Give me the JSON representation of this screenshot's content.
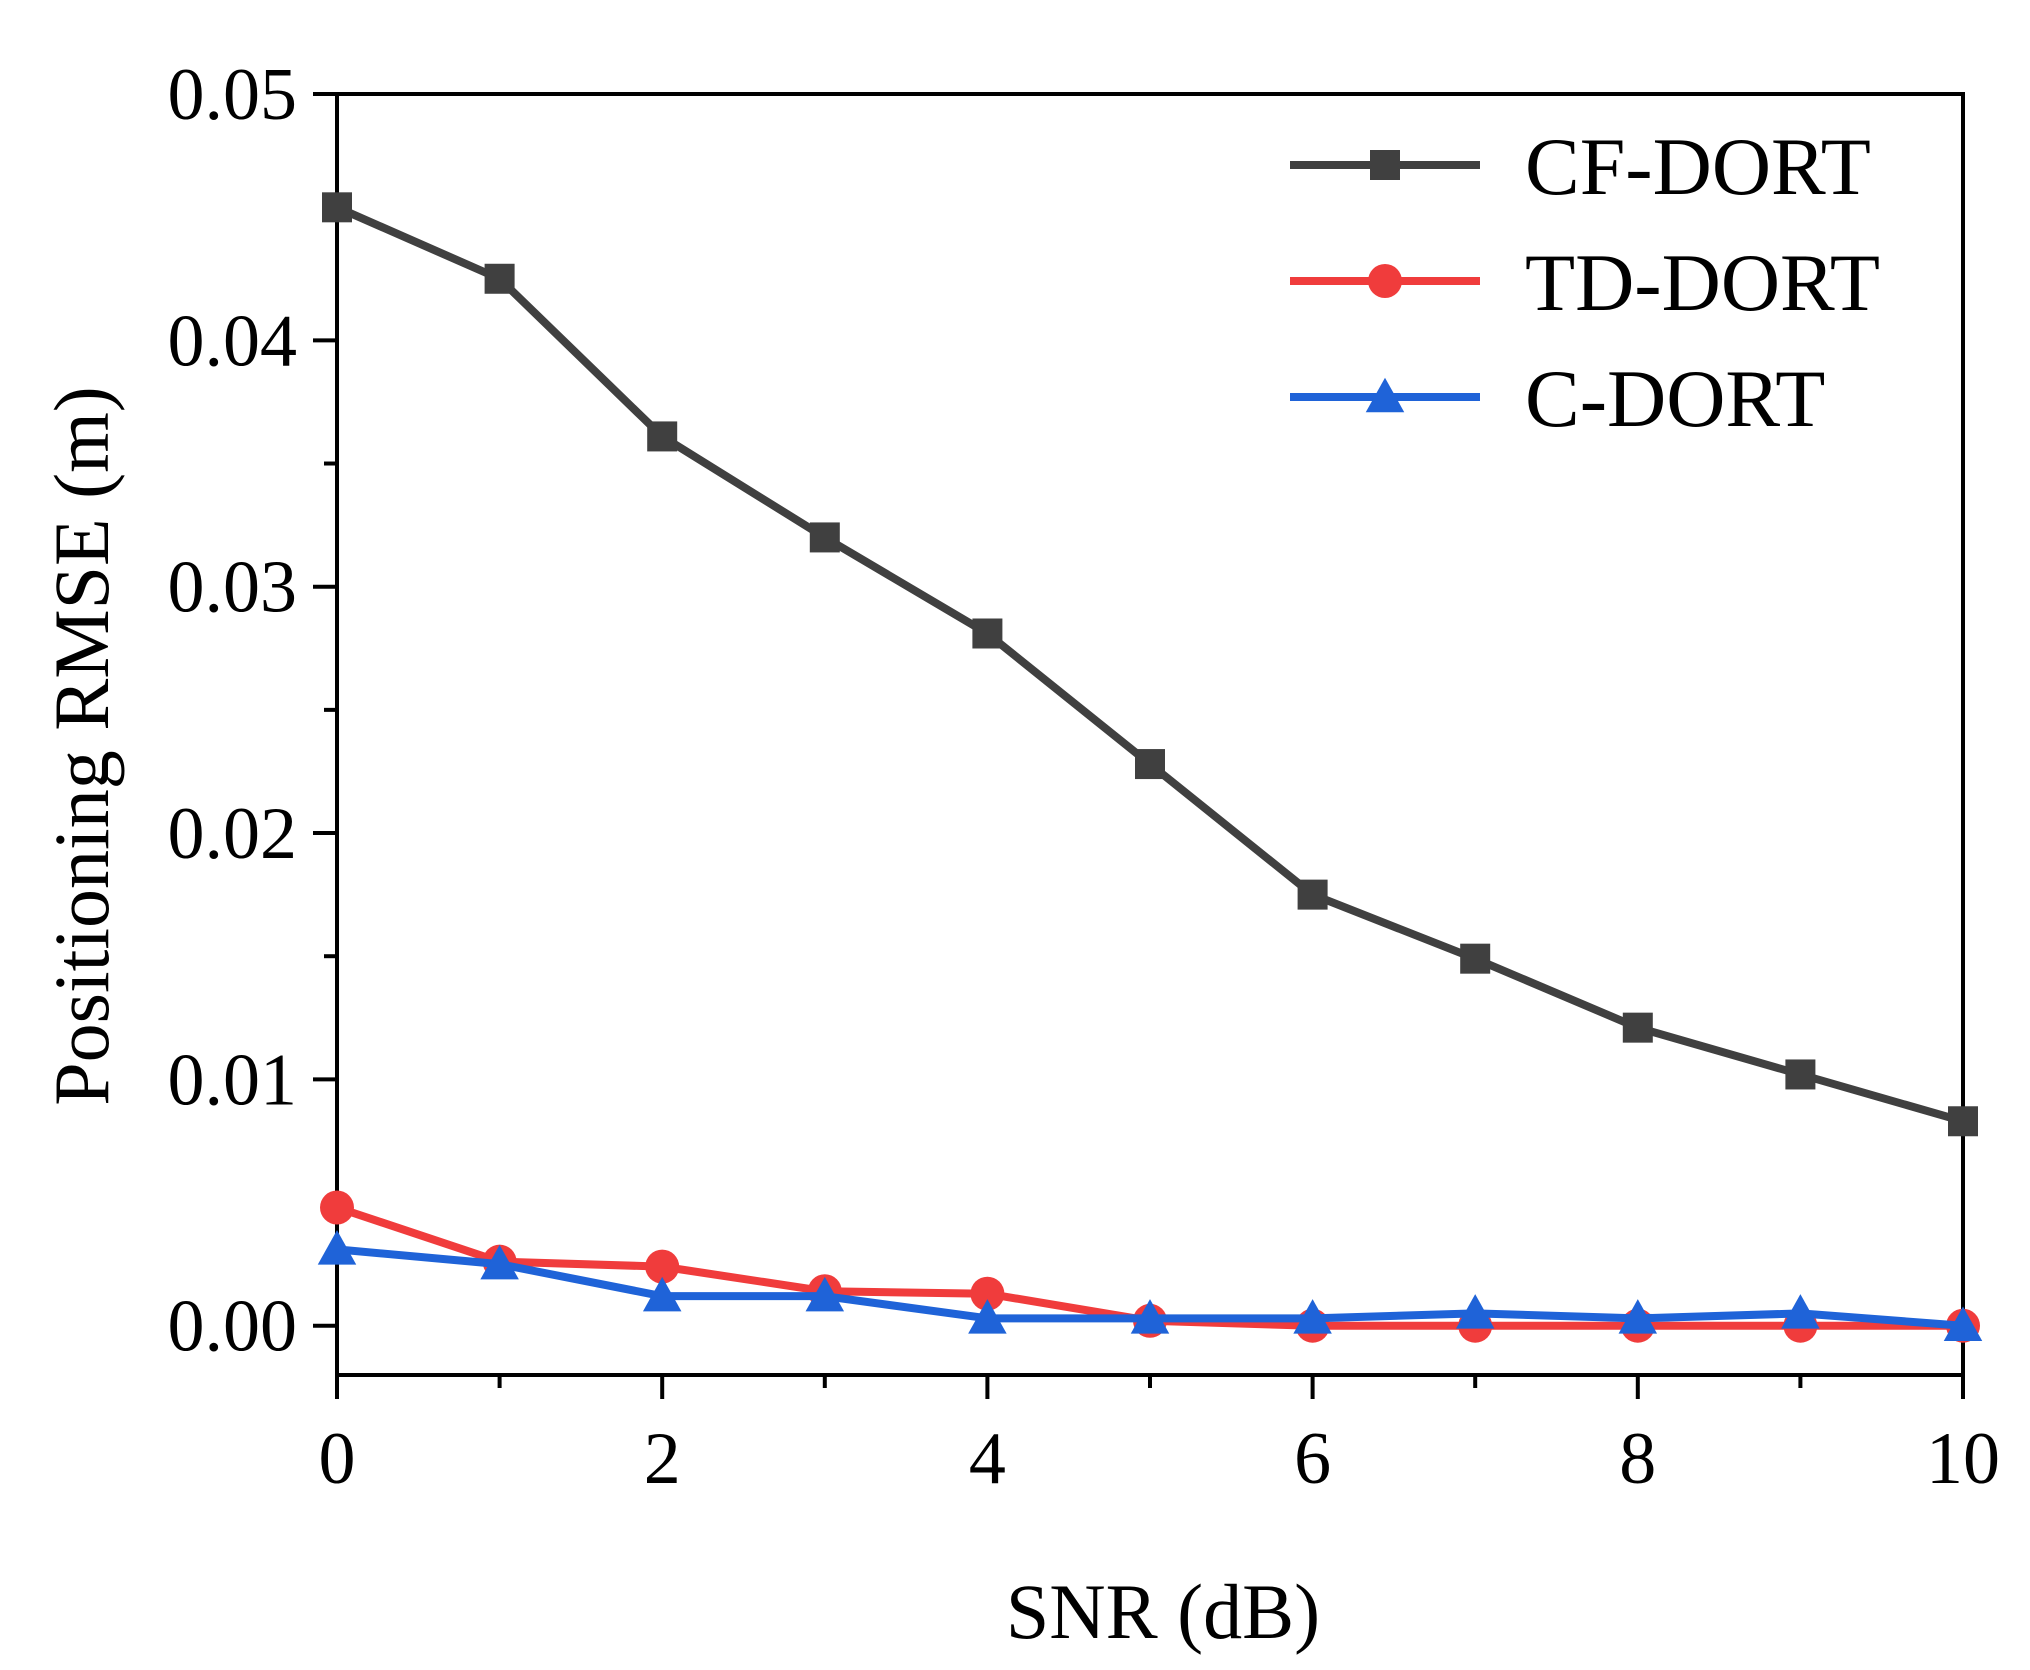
{
  "chart_data": {
    "type": "line",
    "title": "",
    "xlabel": "SNR (dB)",
    "ylabel": "Positioning RMSE (m)",
    "xlim": [
      0,
      10
    ],
    "ylim": [
      -0.002,
      0.05
    ],
    "x": [
      0,
      1,
      2,
      3,
      4,
      5,
      6,
      7,
      8,
      9,
      10
    ],
    "x_ticks": [
      0,
      2,
      4,
      6,
      8,
      10
    ],
    "x_tick_labels": [
      "0",
      "2",
      "4",
      "6",
      "8",
      "10"
    ],
    "y_ticks": [
      0.0,
      0.01,
      0.02,
      0.03,
      0.04,
      0.05
    ],
    "y_tick_labels": [
      "0.00",
      "0.01",
      "0.02",
      "0.03",
      "0.04",
      "0.05"
    ],
    "legend_position": "top-right",
    "grid": false,
    "series": [
      {
        "name": "CF-DORT",
        "color": "#404040",
        "marker": "square",
        "values": [
          0.0454,
          0.0425,
          0.0361,
          0.032,
          0.0281,
          0.0228,
          0.0175,
          0.0149,
          0.0121,
          0.0102,
          0.0083
        ]
      },
      {
        "name": "TD-DORT",
        "color": "#f03c3c",
        "marker": "circle",
        "values": [
          0.0048,
          0.0026,
          0.0024,
          0.0014,
          0.0013,
          0.0002,
          0.0,
          0.0,
          0.0,
          0.0,
          0.0
        ]
      },
      {
        "name": "C-DORT",
        "color": "#1f63d8",
        "marker": "triangle",
        "values": [
          0.0031,
          0.0025,
          0.0012,
          0.0012,
          0.0003,
          0.0003,
          0.0003,
          0.0005,
          0.0003,
          0.0005,
          0.0
        ]
      }
    ]
  }
}
